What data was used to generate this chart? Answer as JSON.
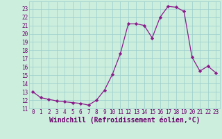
{
  "x": [
    0,
    1,
    2,
    3,
    4,
    5,
    6,
    7,
    8,
    9,
    10,
    11,
    12,
    13,
    14,
    15,
    16,
    17,
    18,
    19,
    20,
    21,
    22,
    23
  ],
  "y": [
    13.0,
    12.3,
    12.1,
    11.9,
    11.8,
    11.7,
    11.6,
    11.4,
    12.0,
    13.2,
    15.1,
    17.6,
    21.2,
    21.2,
    21.0,
    19.5,
    22.0,
    23.3,
    23.2,
    22.7,
    17.2,
    15.5,
    16.1,
    15.3
  ],
  "line_color": "#8b1a8b",
  "marker": "D",
  "marker_size": 2.2,
  "bg_color": "#cceedd",
  "grid_color": "#99cccc",
  "xlabel": "Windchill (Refroidissement éolien,°C)",
  "xlim": [
    -0.5,
    23.5
  ],
  "ylim": [
    11.0,
    23.9
  ],
  "yticks": [
    11,
    12,
    13,
    14,
    15,
    16,
    17,
    18,
    19,
    20,
    21,
    22,
    23
  ],
  "xticks": [
    0,
    1,
    2,
    3,
    4,
    5,
    6,
    7,
    8,
    9,
    10,
    11,
    12,
    13,
    14,
    15,
    16,
    17,
    18,
    19,
    20,
    21,
    22,
    23
  ],
  "tick_fontsize": 5.5,
  "xlabel_fontsize": 7.0,
  "text_color": "#6b006b"
}
